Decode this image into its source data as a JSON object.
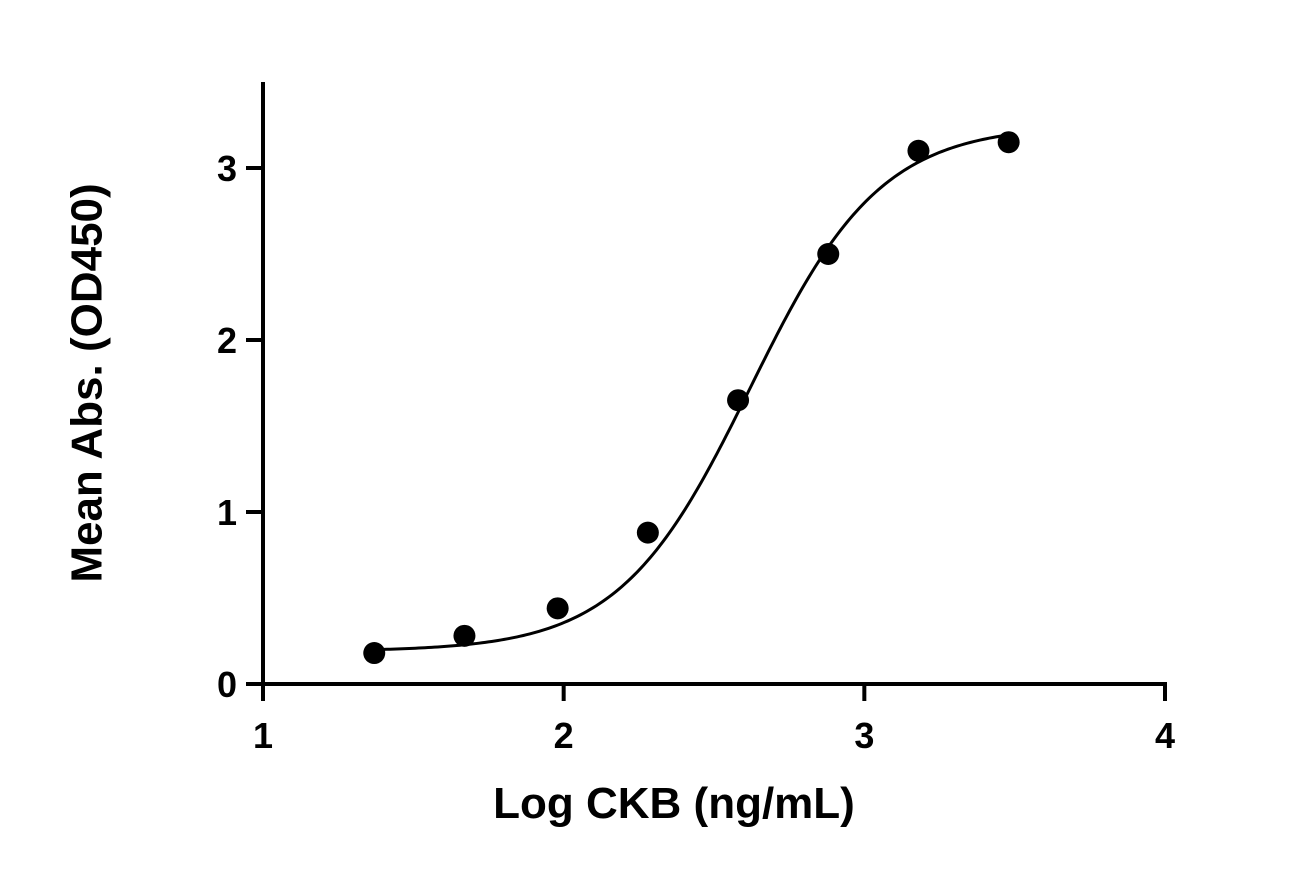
{
  "chart_data": {
    "type": "scatter",
    "xlabel": "Log CKB (ng/mL)",
    "ylabel": "Mean Abs. (OD450)",
    "xlim": [
      1,
      4
    ],
    "ylim": [
      0,
      3.5
    ],
    "xticks": [
      1,
      2,
      3,
      4
    ],
    "yticks": [
      0,
      1,
      2,
      3
    ],
    "grid": false,
    "series": [
      {
        "x": [
          1.37,
          1.67,
          1.98,
          2.28,
          2.58,
          2.88,
          3.18,
          3.48
        ],
        "y": [
          0.18,
          0.28,
          0.44,
          0.88,
          1.65,
          2.5,
          3.1,
          3.15
        ]
      }
    ],
    "fit": {
      "model": "4PL",
      "bottom": 0.19,
      "top": 3.25,
      "ec50_log": 2.62,
      "hill": 2.0,
      "x_range": [
        1.37,
        3.48
      ]
    },
    "colors": {
      "points": "#000000",
      "curve": "#000000",
      "axes": "#000000"
    }
  }
}
